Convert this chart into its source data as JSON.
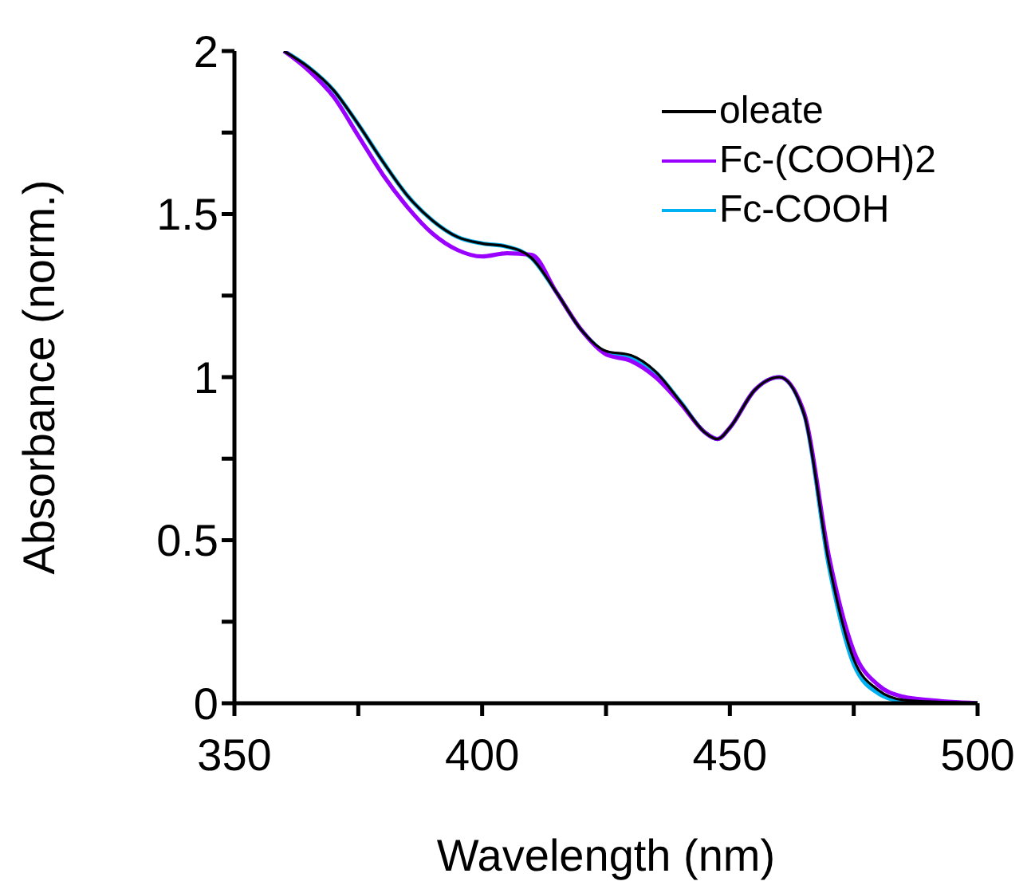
{
  "chart_data": {
    "type": "line",
    "xlabel": "Wavelength (nm)",
    "ylabel": "Absorbance (norm.)",
    "xlim": [
      350,
      500
    ],
    "xticks": [
      350,
      {
        "value": 375,
        "label": null
      },
      400,
      {
        "value": 425,
        "label": null
      },
      450,
      {
        "value": 475,
        "label": null
      },
      500
    ],
    "ylim": [
      0,
      2
    ],
    "yticks": [
      0,
      {
        "value": 0.25,
        "label": null
      },
      0.5,
      {
        "value": 0.75,
        "label": null
      },
      1,
      {
        "value": 1.25,
        "label": null
      },
      1.5,
      {
        "value": 1.75,
        "label": null
      },
      2
    ],
    "grid": false,
    "legend": "top right",
    "marker": "none",
    "line_style": "solid",
    "series": [
      {
        "name": "oleate",
        "color": "#000000",
        "x": [
          360,
          365,
          370,
          375,
          380,
          385,
          390,
          395,
          400,
          405,
          410,
          415,
          420,
          425,
          430,
          435,
          440,
          445,
          447.5,
          450,
          455,
          460,
          465,
          470,
          475,
          480,
          485,
          490,
          500
        ],
        "values": [
          2.0,
          1.95,
          1.88,
          1.775,
          1.66,
          1.555,
          1.48,
          1.43,
          1.41,
          1.4,
          1.365,
          1.26,
          1.145,
          1.08,
          1.067,
          1.017,
          0.925,
          0.83,
          0.81,
          0.845,
          0.96,
          1.0,
          0.885,
          0.43,
          0.135,
          0.04,
          0.01,
          0.005,
          0
        ]
      },
      {
        "name": "Fc-(COOH)2",
        "color": "#9900ff",
        "x": [
          360,
          365,
          370,
          375,
          380,
          385,
          390,
          395,
          400,
          405,
          410,
          415,
          420,
          425,
          430,
          435,
          440,
          445,
          447.5,
          450,
          455,
          460,
          465,
          470,
          475,
          480,
          485,
          490,
          500
        ],
        "values": [
          2.0,
          1.94,
          1.86,
          1.74,
          1.62,
          1.52,
          1.44,
          1.39,
          1.37,
          1.38,
          1.375,
          1.26,
          1.145,
          1.07,
          1.05,
          1.0,
          0.92,
          0.83,
          0.81,
          0.845,
          0.96,
          1.0,
          0.89,
          0.45,
          0.16,
          0.055,
          0.02,
          0.01,
          0
        ]
      },
      {
        "name": "Fc-COOH",
        "color": "#00b0f0",
        "x": [
          360,
          365,
          370,
          375,
          380,
          385,
          390,
          395,
          400,
          405,
          410,
          415,
          420,
          425,
          430,
          435,
          440,
          445,
          447.5,
          450,
          455,
          460,
          465,
          470,
          475,
          480,
          485,
          490,
          500
        ],
        "values": [
          2.0,
          1.95,
          1.88,
          1.775,
          1.66,
          1.555,
          1.48,
          1.43,
          1.41,
          1.4,
          1.365,
          1.26,
          1.145,
          1.075,
          1.06,
          1.015,
          0.925,
          0.83,
          0.81,
          0.845,
          0.96,
          1.0,
          0.885,
          0.42,
          0.12,
          0.03,
          0.005,
          0,
          0
        ]
      }
    ]
  }
}
